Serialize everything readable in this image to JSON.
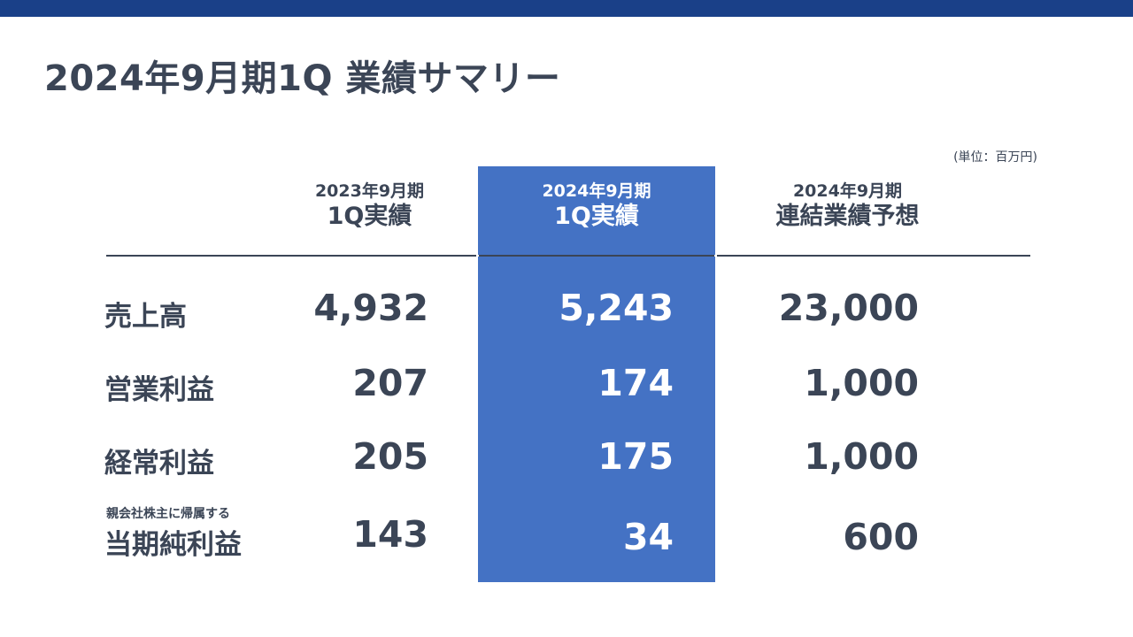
{
  "slide": {
    "title": "2024年9月期1Q  業績サマリー",
    "unit_note": "(単位：百万円)",
    "accent_color": "#1a4088",
    "highlight_color": "#4472c4",
    "text_color": "#3b4556"
  },
  "table": {
    "columns": [
      {
        "line1": "2023年9月期",
        "line2": "1Q実績"
      },
      {
        "line1": "2024年9月期",
        "line2": "1Q実績"
      },
      {
        "line1": "2024年9月期",
        "line2": "連結業績予想"
      }
    ],
    "rows": [
      {
        "label": "売上高",
        "values": [
          "4,932",
          "5,243",
          "23,000"
        ]
      },
      {
        "label": "営業利益",
        "values": [
          "207",
          "174",
          "1,000"
        ]
      },
      {
        "label": "経常利益",
        "values": [
          "205",
          "175",
          "1,000"
        ]
      },
      {
        "sublabel": "親会社株主に帰属する",
        "label": "当期純利益",
        "values": [
          "143",
          "34",
          "600"
        ]
      }
    ]
  }
}
